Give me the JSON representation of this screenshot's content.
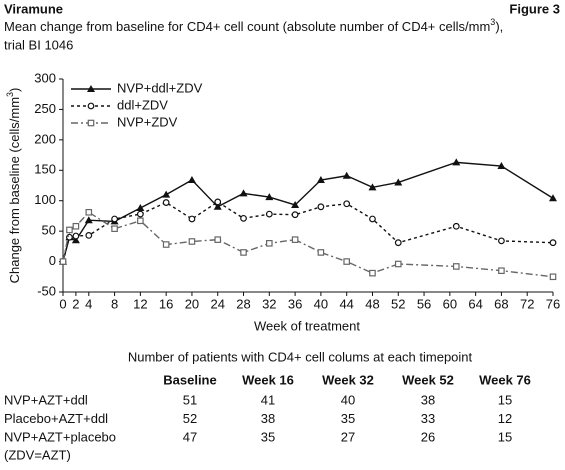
{
  "header": {
    "title": "Viramune",
    "figure": "Figure 3",
    "subtitle_parts": [
      "Mean change from baseline for CD4+ cell count (absolute number of CD4+ cells/mm",
      "3",
      "),"
    ],
    "subtitle_line2": "trial BI 1046"
  },
  "chart_data": {
    "type": "line",
    "x_label": "Week of treatment",
    "y_label_parts": [
      "Change from baseline (cells/mm",
      "3",
      ")"
    ],
    "x": [
      0,
      1,
      2,
      4,
      8,
      12,
      16,
      20,
      24,
      28,
      32,
      36,
      40,
      44,
      48,
      52,
      61,
      68,
      76
    ],
    "series": [
      {
        "name": "NVP+ddl+ZDV",
        "color": "#111111",
        "marker": "triangle",
        "dash": "none",
        "values": [
          0,
          40,
          35,
          68,
          66,
          88,
          110,
          134,
          90,
          112,
          106,
          93,
          134,
          141,
          122,
          130,
          163,
          157,
          104
        ]
      },
      {
        "name": "ddl+ZDV",
        "color": "#111111",
        "marker": "circle",
        "dash": "3,3",
        "values": [
          0,
          40,
          42,
          43,
          70,
          78,
          97,
          70,
          98,
          71,
          78,
          77,
          90,
          95,
          70,
          31,
          58,
          34,
          31
        ]
      },
      {
        "name": "NVP+ZDV",
        "color": "#666666",
        "marker": "square",
        "dash": "7,3,2,3",
        "values": [
          0,
          52,
          58,
          81,
          54,
          67,
          28,
          33,
          36,
          15,
          30,
          36,
          15,
          0,
          -19,
          -4,
          -8,
          -15,
          -25
        ]
      }
    ],
    "xlim": [
      0,
      76
    ],
    "xticks": [
      0,
      2,
      4,
      8,
      12,
      16,
      20,
      24,
      28,
      32,
      36,
      40,
      44,
      48,
      52,
      56,
      60,
      64,
      68,
      72,
      76
    ],
    "ylim": [
      -50,
      300
    ],
    "yticks": [
      -50,
      0,
      50,
      100,
      150,
      200,
      250,
      300
    ],
    "grid": false,
    "legend": "upper left"
  },
  "table": {
    "title": "Number of patients with CD4+ cell colums at each timepoint",
    "columns": [
      "Baseline",
      "Week 16",
      "Week 32",
      "Week 52",
      "Week 76"
    ],
    "rows": [
      [
        "NVP+AZT+ddl",
        51,
        41,
        40,
        38,
        15
      ],
      [
        "Placebo+AZT+ddl",
        52,
        38,
        35,
        33,
        12
      ],
      [
        "NVP+AZT+placebo",
        47,
        35,
        27,
        26,
        15
      ]
    ],
    "note": "(ZDV=AZT)"
  }
}
